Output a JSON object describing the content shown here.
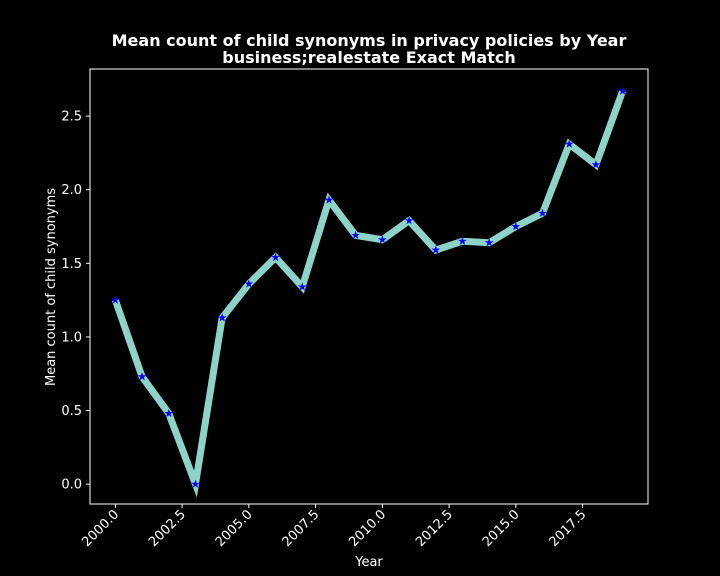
{
  "chart_data": {
    "type": "line",
    "title": "Mean count of child synonyms in privacy policies by Year",
    "subtitle": "business;realestate Exact Match",
    "xlabel": "Year",
    "ylabel": "Mean count of child synonyms",
    "x_ticks": [
      "2000.0",
      "2002.5",
      "2005.0",
      "2007.5",
      "2010.0",
      "2012.5",
      "2015.0",
      "2017.5"
    ],
    "y_ticks": [
      "0.0",
      "0.5",
      "1.0",
      "1.5",
      "2.0",
      "2.5"
    ],
    "xlim": [
      1999.05,
      2019.95
    ],
    "ylim": [
      -0.135,
      2.82
    ],
    "grid": false,
    "background_color": "#000000",
    "series": [
      {
        "line_color": "#8dd3c7",
        "marker": "star",
        "marker_color": "#0000ff",
        "x": [
          2000,
          2001,
          2002,
          2003,
          2004,
          2005,
          2006,
          2007,
          2008,
          2009,
          2010,
          2011,
          2012,
          2013,
          2014,
          2015,
          2016,
          2017,
          2018,
          2019
        ],
        "y": [
          1.25,
          0.73,
          0.48,
          0.0,
          1.13,
          1.36,
          1.54,
          1.34,
          1.93,
          1.69,
          1.66,
          1.79,
          1.59,
          1.65,
          1.64,
          1.75,
          1.84,
          2.31,
          2.17,
          2.67
        ]
      }
    ]
  }
}
